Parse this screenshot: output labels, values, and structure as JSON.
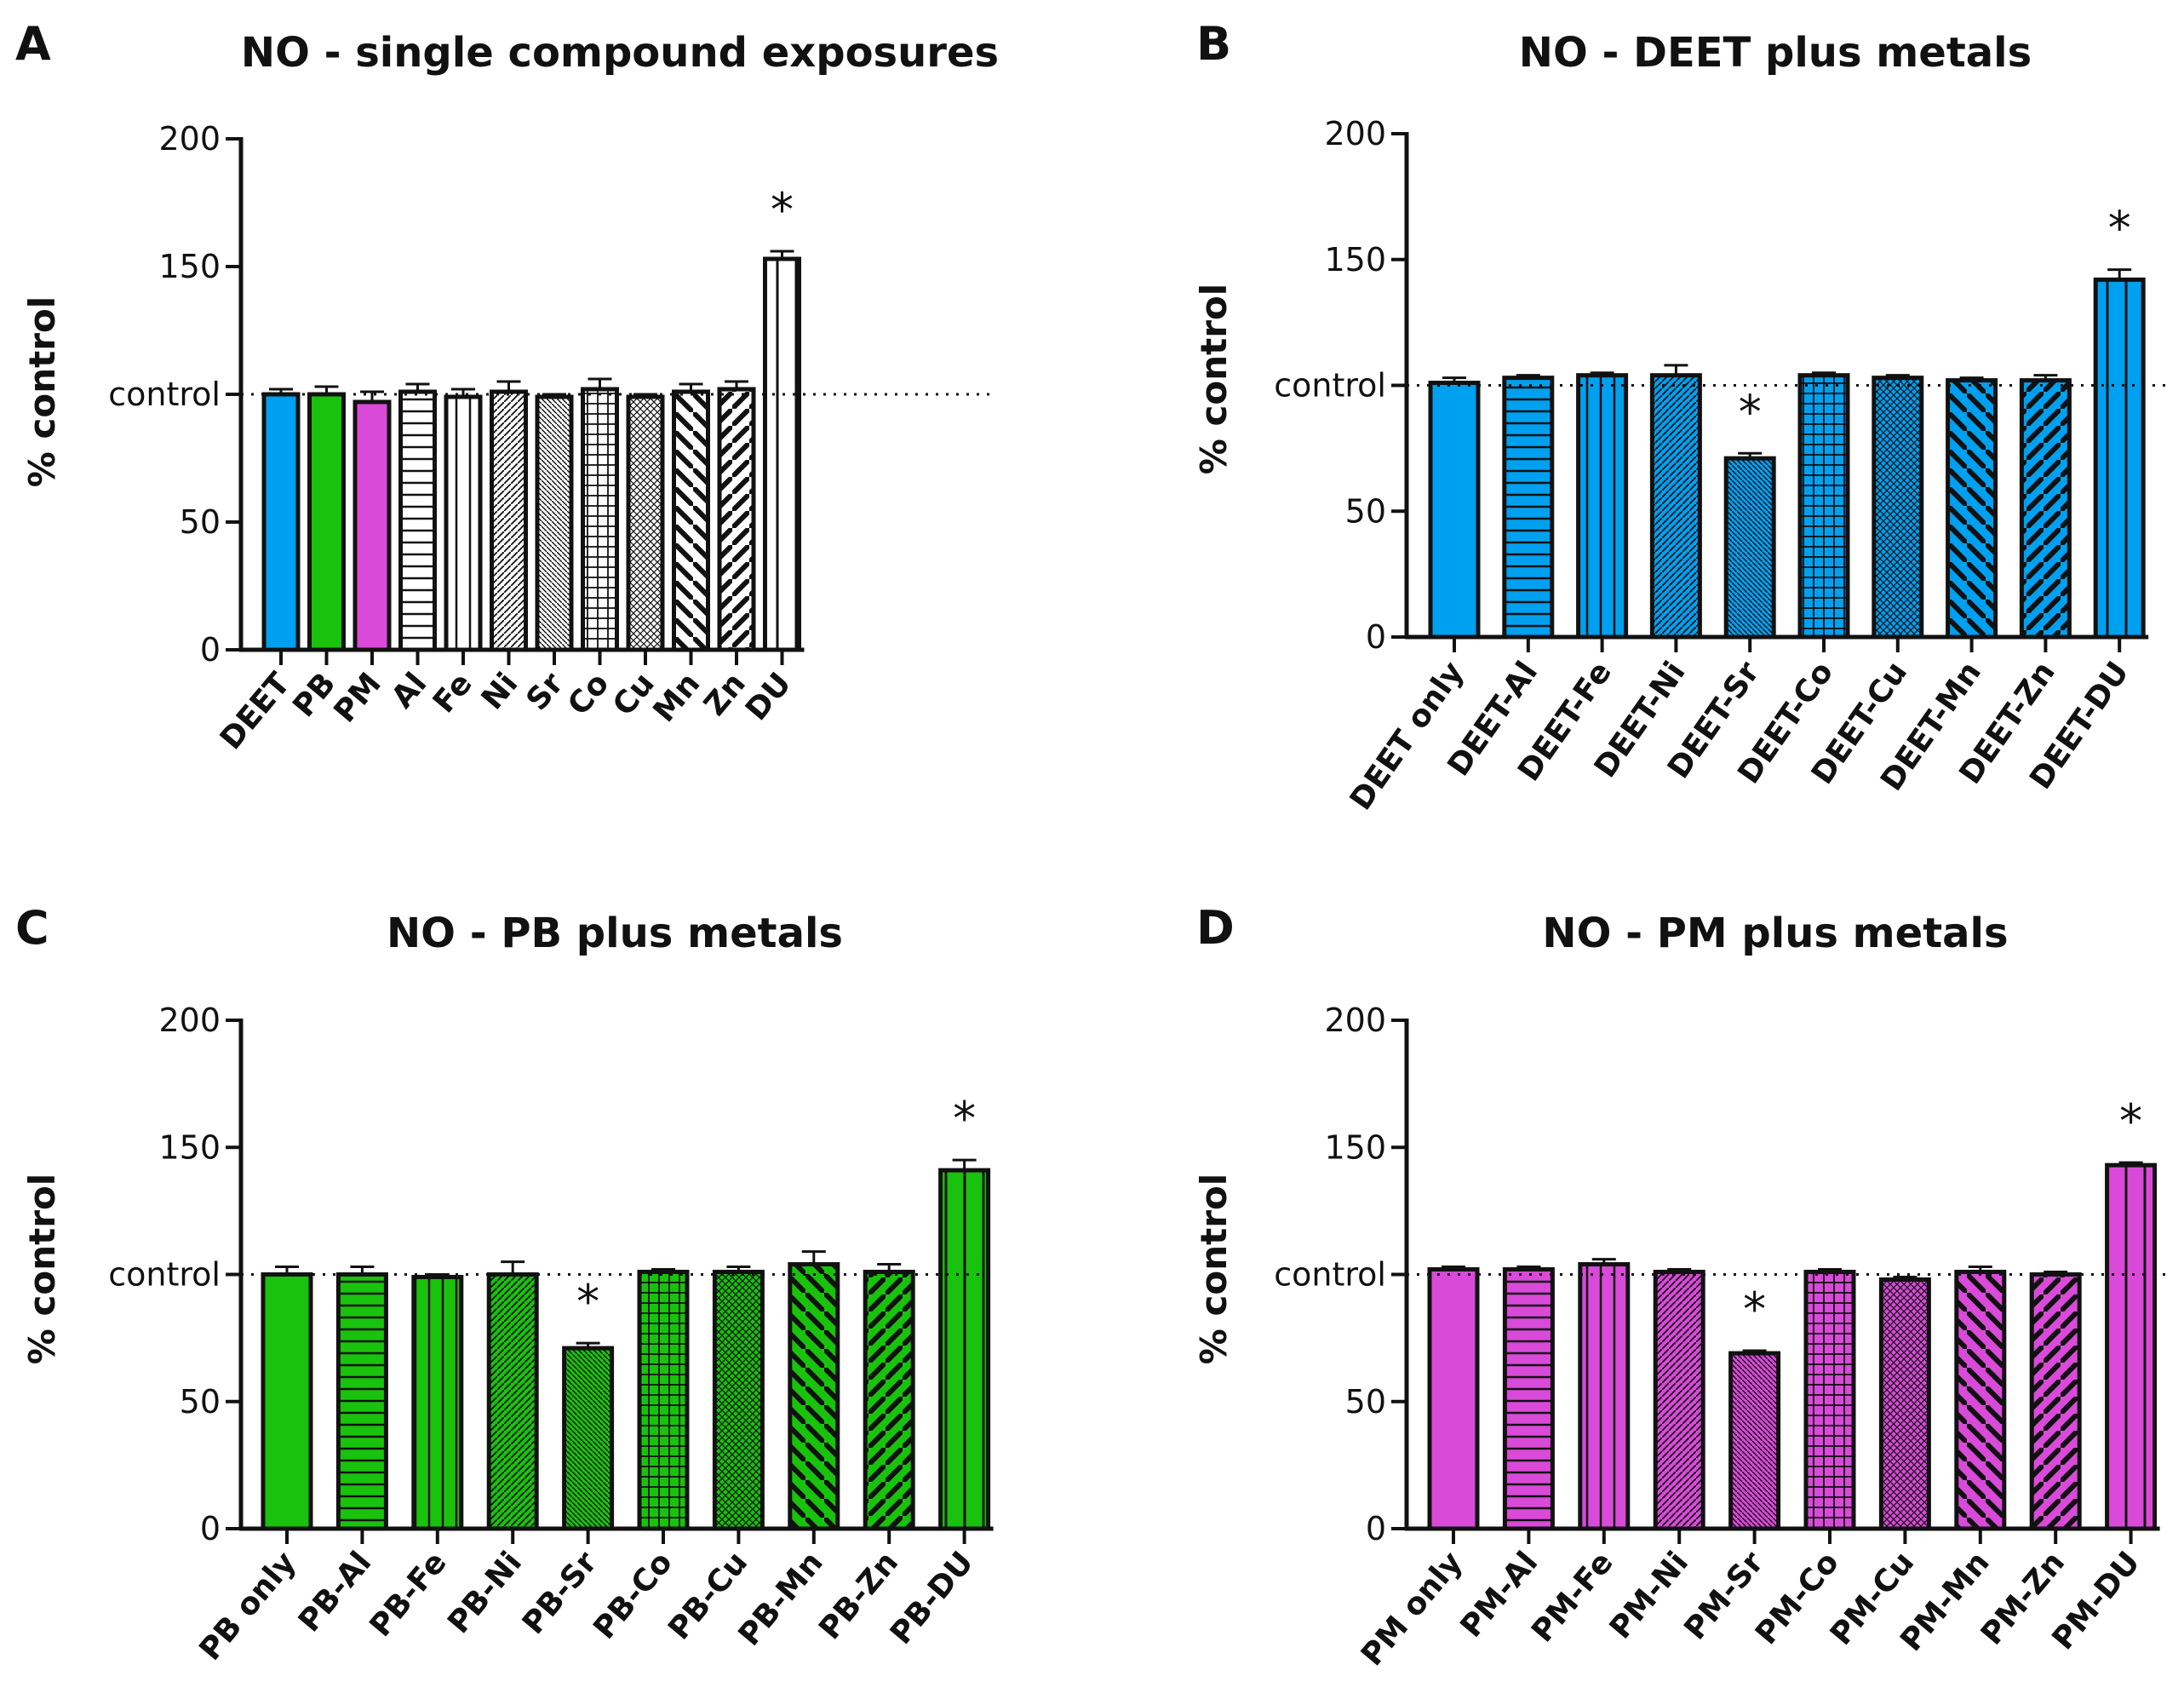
{
  "chart_data": [
    {
      "panel": "A",
      "type": "bar",
      "title": "NO - single compound exposures",
      "ylabel": "% control",
      "ylim": [
        0,
        200
      ],
      "yticks": [
        "0",
        "50",
        "control",
        "150",
        "200"
      ],
      "reference_line": {
        "value": 100,
        "label": "control",
        "style": "dotted"
      },
      "categories": [
        "DEET",
        "PB",
        "PM",
        "Al",
        "Fe",
        "Ni",
        "Sr",
        "Co",
        "Cu",
        "Mn",
        "Zn",
        "DU"
      ],
      "values": [
        100,
        100,
        97,
        101,
        99,
        101,
        99,
        102,
        99,
        101,
        102,
        153
      ],
      "errors": [
        2,
        3,
        4,
        3,
        3,
        4,
        1,
        4,
        1,
        3,
        3,
        3
      ],
      "fills": [
        "#00a0f0",
        "#19c20c",
        "#d94ad9",
        "#ffffff",
        "#ffffff",
        "#ffffff",
        "#ffffff",
        "#ffffff",
        "#ffffff",
        "#ffffff",
        "#ffffff",
        "#ffffff"
      ],
      "patterns": [
        "solid",
        "solid",
        "solid",
        "hlines",
        "vlines",
        "diag-fine",
        "diag-tiny",
        "grid",
        "crosshatch",
        "diag-bold",
        "diag-bold2",
        "vlines-wide"
      ],
      "significant": [
        "",
        "",
        "",
        "",
        "",
        "",
        "",
        "",
        "",
        "",
        "",
        "*"
      ]
    },
    {
      "panel": "B",
      "type": "bar",
      "title": "NO - DEET plus metals",
      "ylabel": "% control",
      "ylim": [
        0,
        200
      ],
      "yticks": [
        "0",
        "50",
        "control",
        "150",
        "200"
      ],
      "reference_line": {
        "value": 100,
        "label": "control",
        "style": "dotted"
      },
      "categories": [
        "DEET only",
        "DEET-Al",
        "DEET-Fe",
        "DEET-Ni",
        "DEET-Sr",
        "DEET-Co",
        "DEET-Cu",
        "DEET-Mn",
        "DEET-Zn",
        "DEET-DU"
      ],
      "values": [
        101,
        103,
        104,
        104,
        71,
        104,
        103,
        102,
        102,
        142
      ],
      "errors": [
        2,
        1,
        1,
        4,
        2,
        1,
        1,
        1,
        2,
        4
      ],
      "fill": "#00a0f0",
      "patterns": [
        "solid",
        "hlines",
        "vlines",
        "diag-fine",
        "diag-tiny",
        "grid",
        "crosshatch",
        "diag-bold",
        "diag-bold2",
        "vlines-wide"
      ],
      "significant": [
        "",
        "",
        "",
        "",
        "*",
        "",
        "",
        "",
        "",
        "*"
      ]
    },
    {
      "panel": "C",
      "type": "bar",
      "title": "NO - PB plus metals",
      "ylabel": "% control",
      "ylim": [
        0,
        200
      ],
      "yticks": [
        "0",
        "50",
        "control",
        "150",
        "200"
      ],
      "reference_line": {
        "value": 100,
        "label": "control",
        "style": "dotted"
      },
      "categories": [
        "PB only",
        "PB-Al",
        "PB-Fe",
        "PB-Ni",
        "PB-Sr",
        "PB-Co",
        "PB-Cu",
        "PB-Mn",
        "PB-Zn",
        "PB-DU"
      ],
      "values": [
        100,
        100,
        99,
        100,
        71,
        101,
        101,
        104,
        101,
        141
      ],
      "errors": [
        3,
        3,
        1,
        5,
        2,
        1,
        2,
        5,
        3,
        4
      ],
      "fill": "#19c20c",
      "patterns": [
        "solid",
        "hlines",
        "vlines",
        "diag-fine",
        "diag-tiny",
        "grid",
        "crosshatch",
        "diag-bold",
        "diag-bold2",
        "vlines-wide"
      ],
      "significant": [
        "",
        "",
        "",
        "",
        "*",
        "",
        "",
        "",
        "",
        "*"
      ]
    },
    {
      "panel": "D",
      "type": "bar",
      "title": "NO - PM plus metals",
      "ylabel": "% control",
      "ylim": [
        0,
        200
      ],
      "yticks": [
        "0",
        "50",
        "control",
        "150",
        "200"
      ],
      "reference_line": {
        "value": 100,
        "label": "control",
        "style": "dotted"
      },
      "categories": [
        "PM only",
        "PM-Al",
        "PM-Fe",
        "PM-Ni",
        "PM-Sr",
        "PM-Co",
        "PM-Cu",
        "PM-Mn",
        "PM-Zn",
        "PM-DU"
      ],
      "values": [
        102,
        102,
        104,
        101,
        69,
        101,
        98,
        101,
        100,
        143
      ],
      "errors": [
        1,
        1,
        2,
        1,
        1,
        1,
        1,
        2,
        1,
        1
      ],
      "fill": "#d94ad9",
      "patterns": [
        "solid",
        "hlines",
        "vlines",
        "diag-fine",
        "diag-tiny",
        "grid",
        "crosshatch",
        "diag-bold",
        "diag-bold2",
        "vlines-wide"
      ],
      "significant": [
        "",
        "",
        "",
        "",
        "*",
        "",
        "",
        "",
        "",
        "*"
      ]
    }
  ]
}
